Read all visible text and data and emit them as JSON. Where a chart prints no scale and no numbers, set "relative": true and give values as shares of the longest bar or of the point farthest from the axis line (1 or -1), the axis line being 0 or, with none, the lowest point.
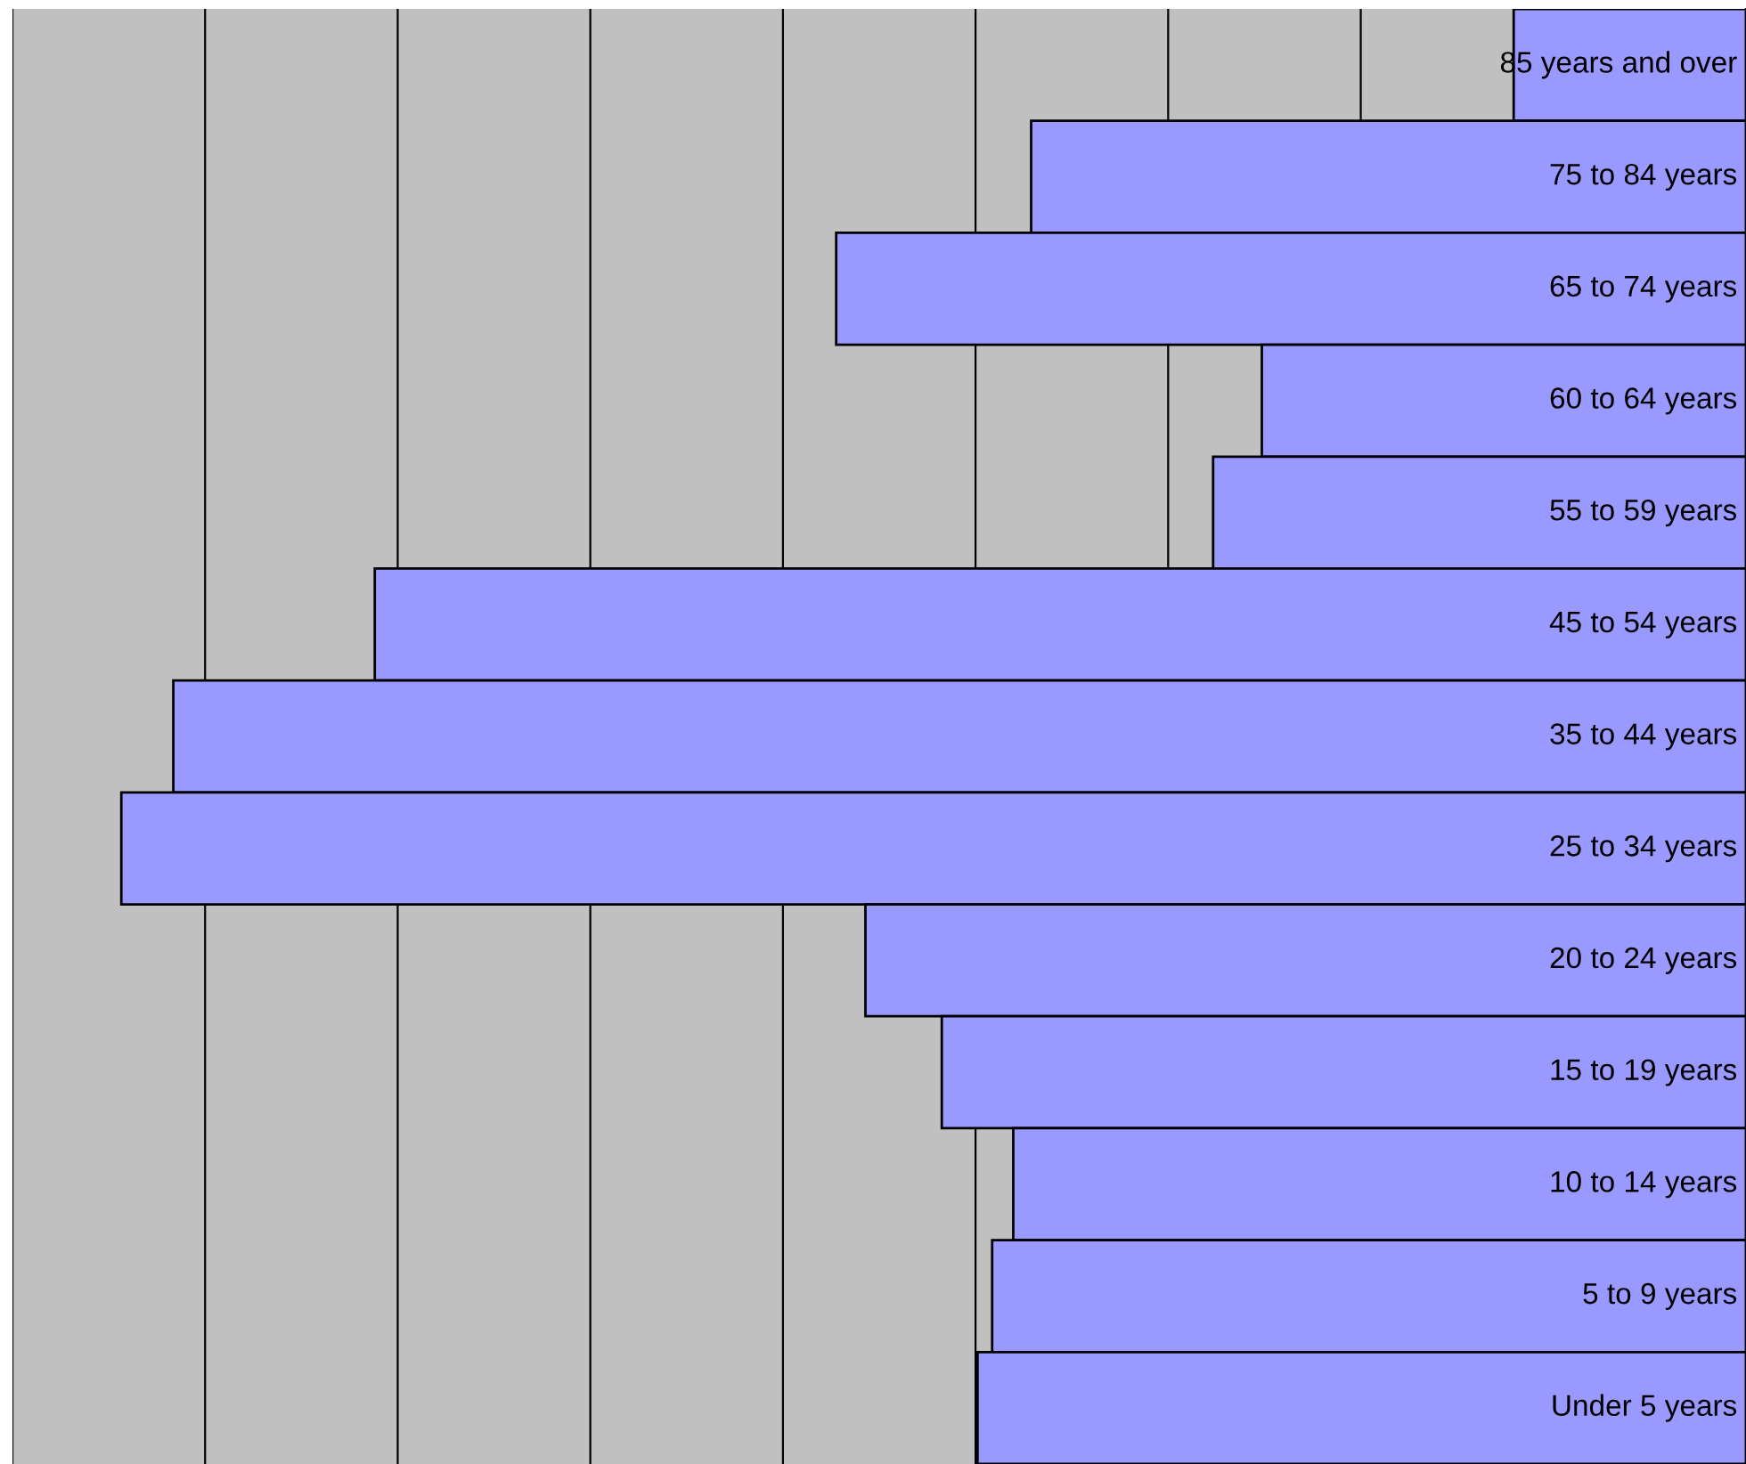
{
  "chart_data": {
    "type": "bar",
    "orientation": "horizontal",
    "relative": true,
    "grid": "x",
    "legend": false,
    "categories": [
      "85 years and over",
      "75 to 84 years",
      "65 to 74 years",
      "60 to 64 years",
      "55 to 59 years",
      "45 to 54 years",
      "35 to 44 years",
      "25 to 34 years",
      "20 to 24 years",
      "15 to 19 years",
      "10 to 14 years",
      "5 to 9 years",
      "Under 5 years"
    ],
    "series": [
      {
        "color": "#9999ff",
        "values": [
          0.143,
          0.44,
          0.56,
          0.298,
          0.328,
          0.844,
          0.968,
          1,
          0.542,
          0.495,
          0.451,
          0.464,
          0.473
        ]
      }
    ]
  }
}
